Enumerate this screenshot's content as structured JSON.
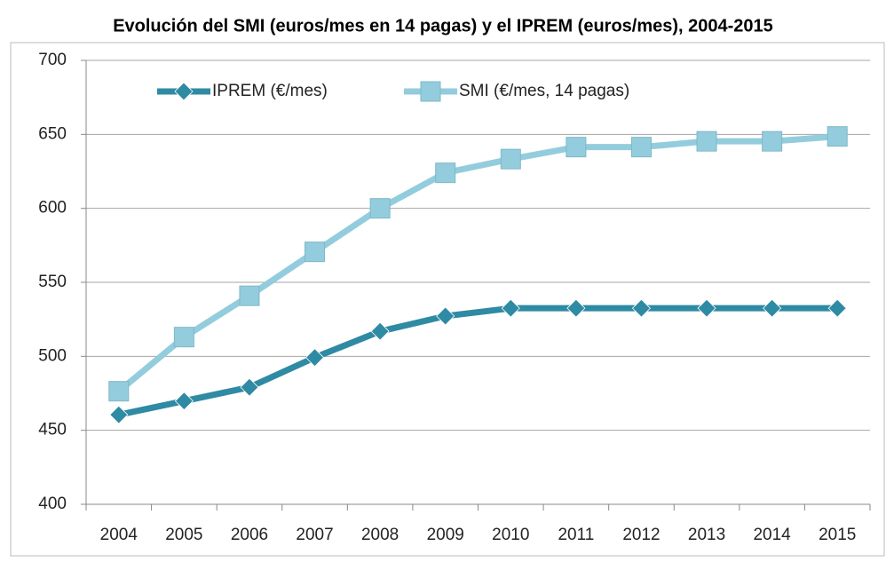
{
  "chart_data": {
    "type": "line",
    "title": "Evolución del SMI (euros/mes en 14 pagas) y el IPREM (euros/mes), 2004-2015",
    "categories": [
      "2004",
      "2005",
      "2006",
      "2007",
      "2008",
      "2009",
      "2010",
      "2011",
      "2012",
      "2013",
      "2014",
      "2015"
    ],
    "series": [
      {
        "name": "IPREM (€/mes)",
        "color": "#2f8aa3",
        "marker": "diamond",
        "values": [
          460.5,
          469.8,
          479.1,
          499.2,
          516.9,
          527.2,
          532.5,
          532.5,
          532.5,
          532.5,
          532.5,
          532.5
        ]
      },
      {
        "name": "SMI (€/mes, 14 pagas)",
        "color": "#93cddd",
        "marker": "square",
        "values": [
          476.4,
          513.0,
          540.9,
          570.6,
          600.0,
          624.0,
          633.3,
          641.4,
          641.4,
          645.3,
          645.3,
          648.6
        ]
      }
    ],
    "ylim": [
      400,
      700
    ],
    "yticks": [
      400,
      450,
      500,
      550,
      600,
      650,
      700
    ],
    "grid": true,
    "legend": "top"
  }
}
